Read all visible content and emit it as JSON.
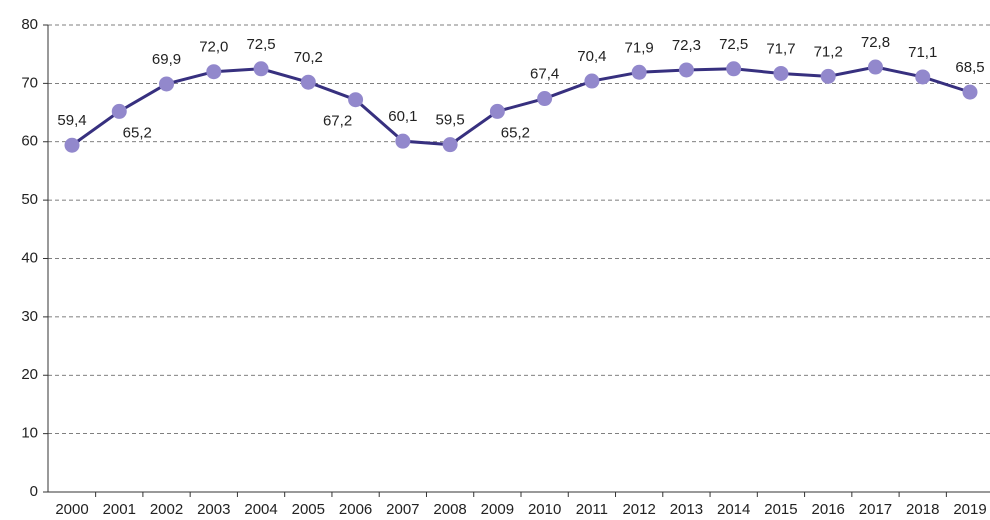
{
  "chart_data": {
    "type": "line",
    "categories": [
      "2000",
      "2001",
      "2002",
      "2003",
      "2004",
      "2005",
      "2006",
      "2007",
      "2008",
      "2009",
      "2010",
      "2011",
      "2012",
      "2013",
      "2014",
      "2015",
      "2016",
      "2017",
      "2018",
      "2019"
    ],
    "series": [
      {
        "color": "#37307f",
        "marker_color": "#9288cc",
        "values": [
          59.4,
          65.2,
          69.9,
          72.0,
          72.5,
          70.2,
          67.2,
          60.1,
          59.5,
          65.2,
          67.4,
          70.4,
          71.9,
          72.3,
          72.5,
          71.7,
          71.2,
          72.8,
          71.1,
          68.5
        ],
        "value_labels": [
          "59,4",
          "65,2",
          "69,9",
          "72,0",
          "72,5",
          "70,2",
          "67,2",
          "60,1",
          "59,5",
          "65,2",
          "67,4",
          "70,4",
          "71,9",
          "72,3",
          "72,5",
          "71,7",
          "71,2",
          "72,8",
          "71,1",
          "68,5"
        ]
      }
    ],
    "ylim": [
      0,
      80
    ],
    "yticks": [
      0,
      10,
      20,
      30,
      40,
      50,
      60,
      70,
      80
    ],
    "grid": true
  }
}
